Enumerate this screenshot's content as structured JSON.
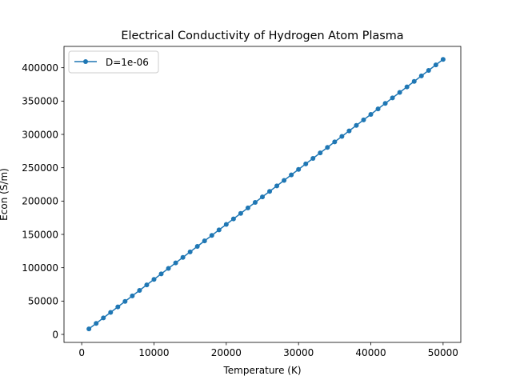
{
  "chart_data": {
    "type": "line",
    "title": "Electrical Conductivity of Hydrogen Atom Plasma",
    "xlabel": "Temperature (K)",
    "ylabel": "Econ (S/m)",
    "xlim": [
      -2450,
      52450
    ],
    "ylim": [
      -12000,
      432000
    ],
    "xticks": [
      0,
      10000,
      20000,
      30000,
      40000,
      50000
    ],
    "xtick_labels": [
      "0",
      "10000",
      "20000",
      "30000",
      "40000",
      "50000"
    ],
    "yticks": [
      0,
      50000,
      100000,
      150000,
      200000,
      250000,
      300000,
      350000,
      400000
    ],
    "ytick_labels": [
      "0",
      "50000",
      "100000",
      "150000",
      "200000",
      "250000",
      "300000",
      "350000",
      "400000"
    ],
    "grid": false,
    "legend_position": "upper left",
    "series": [
      {
        "name": "D=1e-06",
        "color": "#1f77b4",
        "marker": "circle",
        "x": [
          1000,
          2000,
          3000,
          4000,
          5000,
          6000,
          7000,
          8000,
          9000,
          10000,
          11000,
          12000,
          13000,
          14000,
          15000,
          16000,
          17000,
          18000,
          19000,
          20000,
          21000,
          22000,
          23000,
          24000,
          25000,
          26000,
          27000,
          28000,
          29000,
          30000,
          31000,
          32000,
          33000,
          34000,
          35000,
          36000,
          37000,
          38000,
          39000,
          40000,
          41000,
          42000,
          43000,
          44000,
          45000,
          46000,
          47000,
          48000,
          49000,
          50000
        ],
        "y": [
          8300,
          16500,
          24800,
          33000,
          41300,
          49500,
          57800,
          66000,
          74300,
          82500,
          90800,
          99000,
          107300,
          115500,
          123800,
          132000,
          140300,
          148500,
          156800,
          165000,
          173300,
          181500,
          189800,
          198000,
          206300,
          214500,
          222800,
          231000,
          239300,
          247500,
          255800,
          264000,
          272300,
          280500,
          288800,
          297000,
          305300,
          313500,
          321800,
          330000,
          338300,
          346500,
          354800,
          363000,
          371300,
          379500,
          387800,
          396000,
          404300,
          412500
        ]
      }
    ]
  }
}
